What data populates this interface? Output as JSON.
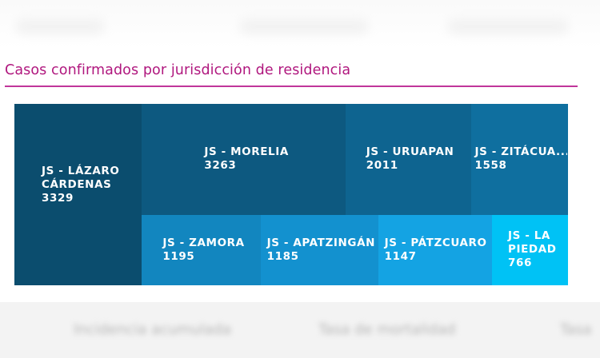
{
  "header": {
    "title": "Casos confirmados por jurisdicción de residencia"
  },
  "colors": {
    "title": "#b0177e",
    "rule": "#c0359a"
  },
  "chart_data": {
    "type": "treemap",
    "title": "Casos confirmados por jurisdicción de residencia",
    "items": [
      {
        "name": "JS - LÁZARO CÁRDENAS",
        "display_name": "JS - LÁZARO CÁRDENAS",
        "value": 3329,
        "color": "#0b4d6e"
      },
      {
        "name": "JS - MORELIA",
        "display_name": "JS - MORELIA",
        "value": 3263,
        "color": "#0d5980"
      },
      {
        "name": "JS - URUAPAN",
        "display_name": "JS - URUAPAN",
        "value": 2011,
        "color": "#0e6490"
      },
      {
        "name": "JS - ZITÁCUARO",
        "display_name": "JS - ZITÁCUA...",
        "value": 1558,
        "color": "#0f6f9f"
      },
      {
        "name": "JS - ZAMORA",
        "display_name": "JS - ZAMORA",
        "value": 1195,
        "color": "#1286bf"
      },
      {
        "name": "JS - APATZINGÁN",
        "display_name": "JS - APATZINGÁN",
        "value": 1185,
        "color": "#1391cf"
      },
      {
        "name": "JS - PÁTZCUARO",
        "display_name": "JS - PÁTZCUARO",
        "value": 1147,
        "color": "#14a3e3"
      },
      {
        "name": "JS - LA PIEDAD",
        "display_name": "JS - LA PIEDAD",
        "value": 766,
        "color": "#00c2f5"
      }
    ]
  }
}
